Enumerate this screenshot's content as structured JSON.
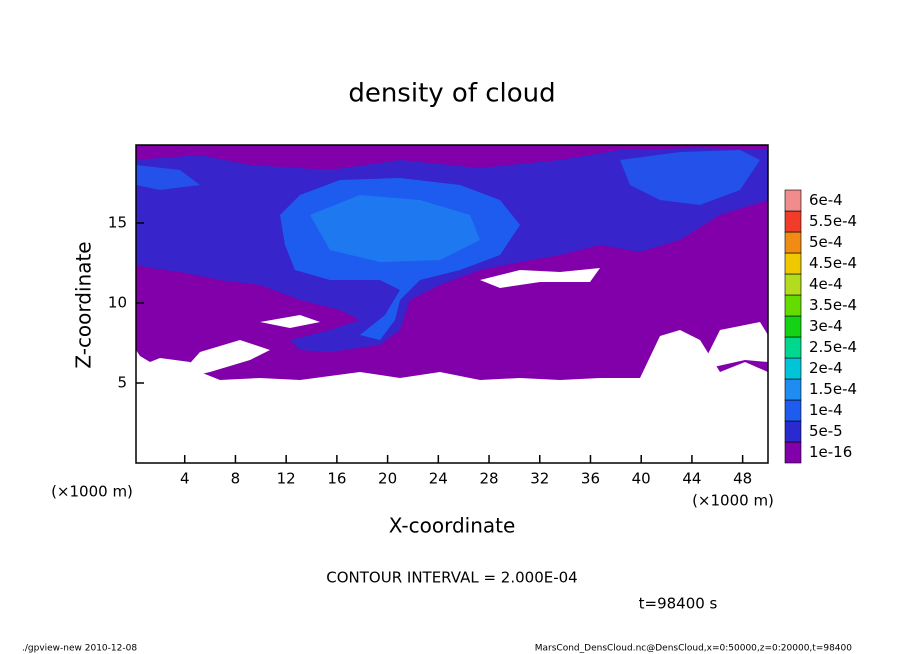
{
  "chart_data": {
    "type": "contour",
    "title": "density of cloud",
    "x_label": "X-coordinate",
    "y_label": "Z-coordinate",
    "y_unit_label": "(×1000 m)",
    "x_unit_label": "(×1000 m)",
    "xlim": [
      0,
      50
    ],
    "ylim": [
      0,
      20
    ],
    "xticks": [
      4,
      8,
      12,
      16,
      20,
      24,
      28,
      32,
      36,
      40,
      44,
      48
    ],
    "yticks": [
      5,
      10,
      15
    ],
    "colorbar": {
      "levels": [
        {
          "value": 1e-16,
          "label": "1e-16"
        },
        {
          "value": 5e-05,
          "label": "5e-5"
        },
        {
          "value": 0.0001,
          "label": "1e-4"
        },
        {
          "value": 0.00015,
          "label": "1.5e-4"
        },
        {
          "value": 0.0002,
          "label": "2e-4"
        },
        {
          "value": 0.00025,
          "label": "2.5e-4"
        },
        {
          "value": 0.0003,
          "label": "3e-4"
        },
        {
          "value": 0.00035,
          "label": "3.5e-4"
        },
        {
          "value": 0.0004,
          "label": "4e-4"
        },
        {
          "value": 0.00045,
          "label": "4.5e-4"
        },
        {
          "value": 0.0005,
          "label": "5e-4"
        },
        {
          "value": 0.00055,
          "label": "5.5e-4"
        },
        {
          "value": 0.0006,
          "label": "6e-4"
        }
      ],
      "colors": [
        "#8200aa",
        "#2a2ad0",
        "#1e5cf0",
        "#1e8cf0",
        "#00c4d8",
        "#00d890",
        "#14d214",
        "#64dc00",
        "#b4dc1e",
        "#f0c800",
        "#f08c14",
        "#f03c28",
        "#f08c8c"
      ]
    },
    "annotations": [
      "CONTOUR INTERVAL = 2.000E-04",
      "t=98400 s",
      "./gpview-new   2010-12-08",
      "MarsCond_DensCloud.nc@DensCloud,x=0:50000,z=0:20000,t=98400"
    ]
  }
}
